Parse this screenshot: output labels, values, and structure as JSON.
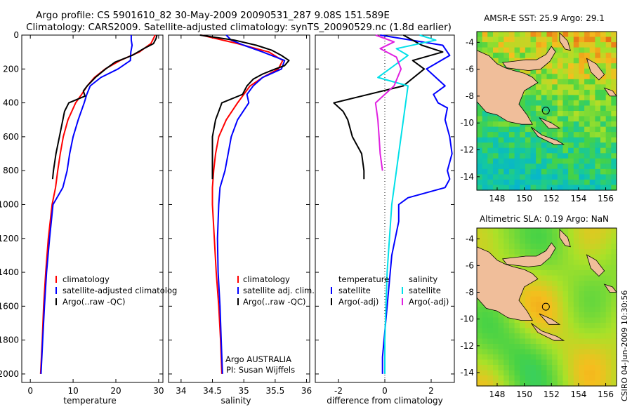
{
  "header": {
    "line1": "Argo profile: CS 5901610_82 30-May-2009 20090531_287 9.08S 151.589E",
    "line2": "Climatology: CARS2009. Satellite-adjusted climatology: synTS_20090529.nc (1.8d earlier)"
  },
  "colors": {
    "red": "#ff0000",
    "blue": "#0000ff",
    "black": "#000000",
    "cyan": "#00e0e8",
    "magenta": "#e020e0",
    "land": "#f0be9a"
  },
  "chart_data": [
    {
      "type": "line",
      "name": "temperature-panel",
      "xlabel": "temperature",
      "ylabel": "",
      "xlim": [
        -2,
        31
      ],
      "ylim": [
        2050,
        0
      ],
      "xticks": [
        0,
        10,
        20,
        30
      ],
      "yticks": [
        0,
        200,
        400,
        600,
        800,
        1000,
        1200,
        1400,
        1600,
        1800,
        2000
      ],
      "legend": {
        "placement": "lower-right",
        "entries": [
          "climatology",
          "satellite-adjusted climatolog",
          "Argo(..raw -QC)"
        ]
      },
      "series": [
        {
          "name": "climatology",
          "color": "red",
          "depth": [
            0,
            50,
            100,
            150,
            200,
            250,
            300,
            350,
            400,
            500,
            600,
            700,
            800,
            900,
            1000,
            1200,
            1400,
            1600,
            1800,
            2000
          ],
          "values": [
            29.2,
            28.2,
            25.5,
            21.0,
            17.5,
            15.0,
            13.3,
            12.0,
            10.6,
            8.8,
            7.7,
            7.0,
            6.4,
            5.9,
            5.1,
            4.2,
            3.6,
            3.1,
            2.8,
            2.4
          ]
        },
        {
          "name": "satellite-adjusted climatology",
          "color": "blue",
          "depth": [
            0,
            30,
            60,
            100,
            150,
            200,
            250,
            300,
            350,
            400,
            500,
            600,
            700,
            800,
            900,
            1000,
            1200,
            1400,
            1600,
            1800,
            2000
          ],
          "values": [
            23.6,
            23.6,
            23.8,
            23.5,
            23.4,
            20.5,
            16.5,
            14.0,
            13.2,
            12.6,
            11.2,
            10.0,
            9.2,
            8.6,
            7.6,
            5.3,
            4.5,
            3.8,
            3.3,
            2.9,
            2.5
          ]
        },
        {
          "name": "Argo(..raw -QC)",
          "color": "black",
          "depth": [
            0,
            20,
            50,
            80,
            120,
            160,
            200,
            250,
            300,
            330,
            360,
            400,
            450,
            500,
            600,
            700,
            800,
            850
          ],
          "values": [
            29.6,
            29.4,
            28.8,
            26.5,
            23.8,
            19.8,
            17.6,
            15.2,
            13.3,
            12.4,
            12.8,
            9.0,
            8.0,
            7.6,
            6.8,
            6.0,
            5.4,
            5.2
          ]
        }
      ]
    },
    {
      "type": "line",
      "name": "salinity-panel",
      "xlabel": "salinity",
      "ylabel": "",
      "xlim": [
        33.8,
        36.05
      ],
      "ylim": [
        2050,
        0
      ],
      "xticks": [
        34,
        34.5,
        35,
        35.5,
        36
      ],
      "legend": {
        "placement": "lower-right",
        "entries": [
          "climatology",
          "satellite adj. clim.",
          "Argo(..raw -QC)"
        ]
      },
      "annotation": [
        "Argo AUSTRALIA",
        "PI: Susan Wijffels"
      ],
      "series": [
        {
          "name": "climatology",
          "color": "red",
          "depth": [
            0,
            50,
            100,
            150,
            200,
            250,
            300,
            400,
            500,
            600,
            700,
            800,
            900,
            1000,
            1200,
            1400,
            1600,
            1800,
            2000
          ],
          "values": [
            34.32,
            34.9,
            35.4,
            35.62,
            35.55,
            35.3,
            35.1,
            34.9,
            34.72,
            34.6,
            34.55,
            34.52,
            34.5,
            34.5,
            34.53,
            34.56,
            34.6,
            34.63,
            34.65
          ]
        },
        {
          "name": "satellite adj. clim.",
          "color": "blue",
          "depth": [
            0,
            30,
            60,
            100,
            150,
            200,
            250,
            300,
            350,
            400,
            500,
            600,
            700,
            800,
            900,
            1000,
            1200,
            1400,
            1600,
            1800,
            2000
          ],
          "values": [
            34.72,
            34.8,
            35.0,
            35.3,
            35.65,
            35.6,
            35.3,
            35.15,
            35.05,
            35.08,
            34.9,
            34.8,
            34.75,
            34.7,
            34.62,
            34.6,
            34.58,
            34.59,
            34.62,
            34.64,
            34.66
          ]
        },
        {
          "name": "Argo(..raw -QC)",
          "color": "black",
          "depth": [
            0,
            30,
            60,
            90,
            120,
            150,
            180,
            200,
            230,
            260,
            300,
            350,
            400,
            450,
            500,
            600,
            700,
            800,
            850
          ],
          "values": [
            34.3,
            34.85,
            35.2,
            35.45,
            35.6,
            35.72,
            35.65,
            35.5,
            35.3,
            35.15,
            35.05,
            34.98,
            34.65,
            34.6,
            34.55,
            34.5,
            34.5,
            34.5,
            34.5
          ]
        }
      ]
    },
    {
      "type": "line",
      "name": "difference-panel",
      "xlabel": "difference from climatology",
      "ylabel": "",
      "xlim": [
        -3,
        3
      ],
      "ylim": [
        2050,
        0
      ],
      "xticks": [
        -2,
        0,
        2
      ],
      "legend": {
        "placement": "lower-right",
        "header_left": "temperature",
        "header_right": "salinity",
        "entries": [
          "satellite",
          "Argo(-adj)",
          "satellite",
          "Argo(-adj)"
        ]
      },
      "series": [
        {
          "name": "temperature satellite",
          "color": "blue",
          "depth": [
            0,
            60,
            120,
            200,
            300,
            350,
            400,
            430,
            500,
            600,
            700,
            800,
            850,
            900,
            960,
            1000,
            1100,
            1300,
            1600,
            1900,
            2000
          ],
          "values": [
            -0.2,
            2.5,
            2.8,
            1.8,
            2.6,
            2.1,
            2.3,
            2.7,
            2.6,
            2.8,
            2.9,
            2.7,
            2.8,
            2.6,
            1.0,
            0.6,
            0.6,
            0.3,
            0.1,
            -0.1,
            -0.1
          ]
        },
        {
          "name": "temperature Argo(-adj)",
          "color": "black",
          "depth": [
            0,
            60,
            100,
            150,
            200,
            300,
            400,
            450,
            500,
            600,
            700,
            800,
            850
          ],
          "values": [
            0.8,
            1.6,
            2.5,
            1.2,
            1.7,
            0.8,
            -2.2,
            -1.8,
            -1.6,
            -1.4,
            -1.0,
            -0.9,
            -0.9
          ]
        },
        {
          "name": "salinity satellite",
          "color": "cyan",
          "depth": [
            0,
            30,
            80,
            120,
            180,
            250,
            300,
            400,
            500,
            600,
            700,
            800,
            1000,
            1200,
            1400,
            1600,
            1800,
            2000
          ],
          "values": [
            1.5,
            2.2,
            0.5,
            1.0,
            0.4,
            -0.3,
            1.0,
            0.9,
            0.8,
            0.7,
            0.6,
            0.5,
            0.3,
            0.2,
            0.1,
            0.05,
            0.0,
            0.0
          ]
        },
        {
          "name": "salinity Argo(-adj)",
          "color": "magenta",
          "depth": [
            0,
            40,
            80,
            130,
            200,
            300,
            400,
            500,
            600,
            700,
            800
          ],
          "values": [
            -0.4,
            0.4,
            -0.2,
            0.5,
            0.7,
            0.4,
            -0.4,
            -0.3,
            -0.25,
            -0.2,
            -0.1
          ]
        }
      ]
    },
    {
      "type": "heatmap",
      "name": "sst-map",
      "title": "AMSR-E SST: 25.9 Argo: 29.1",
      "xlim": [
        146.5,
        156.8
      ],
      "ylim": [
        -15,
        -3.2
      ],
      "xticks": [
        148,
        150,
        152,
        154,
        156
      ],
      "yticks": [
        -4,
        -6,
        -8,
        -10,
        -12,
        -14
      ],
      "marker": {
        "lon": 151.589,
        "lat": -9.08
      }
    },
    {
      "type": "heatmap",
      "name": "sla-map",
      "title": "Altimetric SLA: 0.19 Argo: NaN",
      "xlim": [
        146.5,
        156.8
      ],
      "ylim": [
        -15,
        -3.2
      ],
      "xticks": [
        148,
        150,
        152,
        154,
        156
      ],
      "yticks": [
        -4,
        -6,
        -8,
        -10,
        -12,
        -14
      ],
      "marker": {
        "lon": 151.589,
        "lat": -9.08
      }
    }
  ],
  "side_label": "CSIRO 04-Jun-2009 10:30:56"
}
